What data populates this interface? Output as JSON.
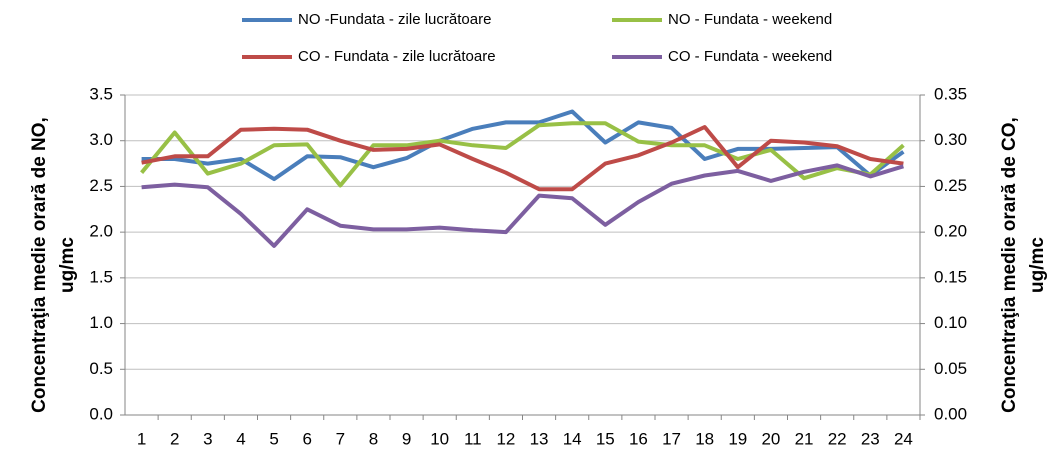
{
  "chart_data": {
    "type": "line",
    "categories": [
      "1",
      "2",
      "3",
      "4",
      "5",
      "6",
      "7",
      "8",
      "9",
      "10",
      "11",
      "12",
      "13",
      "14",
      "15",
      "16",
      "17",
      "18",
      "19",
      "20",
      "21",
      "22",
      "23",
      "24"
    ],
    "ylabel": [
      "Concentraţia medie orară de NO,",
      "ug/mc"
    ],
    "y2label": [
      "Concentraţia medie orară de CO,",
      "ug/mc"
    ],
    "ylim": [
      0,
      3.5
    ],
    "yticks": [
      {
        "value": 0,
        "label": "0.0"
      },
      0.5,
      {
        "value": 1,
        "label": "1.0"
      },
      1.5,
      {
        "value": 2,
        "label": "2.0"
      },
      2.5,
      {
        "value": 3,
        "label": "3.0"
      },
      3.5
    ],
    "y2lim": [
      0,
      0.35
    ],
    "y2ticks": [
      {
        "value": 0,
        "label": "0.00"
      },
      0.05,
      {
        "value": 0.1,
        "label": "0.10"
      },
      0.15,
      {
        "value": 0.2,
        "label": "0.20"
      },
      0.25,
      {
        "value": 0.3,
        "label": "0.30"
      },
      0.35
    ],
    "grid": true,
    "legend": "top",
    "series": [
      {
        "name": "NO -Fundata - zile lucrătoare",
        "color": "#4a7ebb",
        "values": [
          2.8,
          2.8,
          2.75,
          2.8,
          2.58,
          2.83,
          2.82,
          2.71,
          2.81,
          3.0,
          3.13,
          3.2,
          3.2,
          3.32,
          2.98,
          3.2,
          3.14,
          2.8,
          2.91,
          2.91,
          2.92,
          2.93,
          2.62,
          2.88
        ]
      },
      {
        "name": "NO - Fundata - weekend",
        "color": "#98c046",
        "values": [
          2.65,
          3.09,
          2.64,
          2.75,
          2.95,
          2.96,
          2.51,
          2.95,
          2.95,
          3.0,
          2.95,
          2.92,
          3.17,
          3.19,
          3.19,
          2.99,
          2.95,
          2.95,
          2.8,
          2.9,
          2.59,
          2.7,
          2.63,
          2.95
        ]
      },
      {
        "name": "CO - Fundata - zile lucrătoare",
        "color": "#be4b48",
        "axis": "y2",
        "values": [
          0.276,
          0.283,
          0.283,
          0.312,
          0.313,
          0.312,
          0.3,
          0.29,
          0.291,
          0.296,
          0.28,
          0.265,
          0.247,
          0.247,
          0.275,
          0.284,
          0.298,
          0.315,
          0.271,
          0.3,
          0.298,
          0.294,
          0.28,
          0.275
        ]
      },
      {
        "name": "CO - Fundata - weekend",
        "color": "#7d5fa0",
        "axis": "y2",
        "values": [
          0.249,
          0.252,
          0.249,
          0.22,
          0.185,
          0.225,
          0.207,
          0.203,
          0.203,
          0.205,
          0.202,
          0.2,
          0.24,
          0.237,
          0.208,
          0.233,
          0.253,
          0.262,
          0.267,
          0.256,
          0.266,
          0.273,
          0.261,
          0.272
        ]
      }
    ]
  }
}
